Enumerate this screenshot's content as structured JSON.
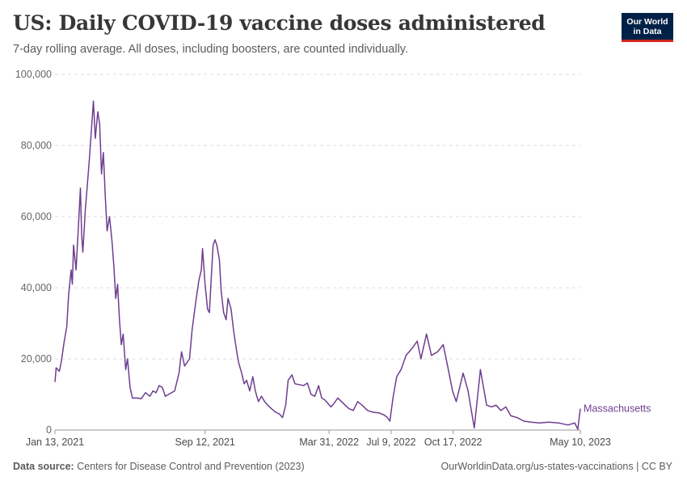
{
  "header": {
    "title": "US: Daily COVID-19 vaccine doses administered",
    "subtitle": "7-day rolling average. All doses, including boosters, are counted individually.",
    "logo_line1": "Our World",
    "logo_line2": "in Data"
  },
  "footer": {
    "source_label": "Data source:",
    "source_text": "Centers for Disease Control and Prevention (2023)",
    "url_license": "OurWorldinData.org/us-states-vaccinations | CC BY"
  },
  "colors": {
    "series": "#6d3e91",
    "grid": "#dddddd",
    "axis": "#999999",
    "logo_bg": "#002147",
    "logo_accent": "#ce261e"
  },
  "chart_data": {
    "type": "line",
    "title": "US: Daily COVID-19 vaccine doses administered",
    "subtitle": "7-day rolling average. All doses, including boosters, are counted individually.",
    "x_range": [
      "2021-01-13",
      "2023-05-10"
    ],
    "ylim": [
      0,
      100000
    ],
    "y_ticks": [
      0,
      20000,
      40000,
      60000,
      80000,
      100000
    ],
    "y_tick_labels": [
      "0",
      "20,000",
      "40,000",
      "60,000",
      "80,000",
      "100,000"
    ],
    "x_ticks": [
      {
        "date": "2021-01-13",
        "label": "Jan 13, 2021"
      },
      {
        "date": "2021-09-12",
        "label": "Sep 12, 2021"
      },
      {
        "date": "2022-03-31",
        "label": "Mar 31, 2022"
      },
      {
        "date": "2022-07-09",
        "label": "Jul 9, 2022"
      },
      {
        "date": "2022-10-17",
        "label": "Oct 17, 2022"
      },
      {
        "date": "2023-05-10",
        "label": "May 10, 2023"
      }
    ],
    "grid": "horizontal dashed",
    "legend": "inline label at line end (right)",
    "series": [
      {
        "name": "Massachusetts",
        "points": [
          [
            "2021-01-13",
            13500
          ],
          [
            "2021-01-15",
            17500
          ],
          [
            "2021-01-20",
            16500
          ],
          [
            "2021-01-23",
            19000
          ],
          [
            "2021-01-28",
            25000
          ],
          [
            "2021-02-01",
            29000
          ],
          [
            "2021-02-04",
            38000
          ],
          [
            "2021-02-08",
            45000
          ],
          [
            "2021-02-10",
            41000
          ],
          [
            "2021-02-12",
            52000
          ],
          [
            "2021-02-16",
            45000
          ],
          [
            "2021-02-20",
            58000
          ],
          [
            "2021-02-23",
            68000
          ],
          [
            "2021-02-25",
            55000
          ],
          [
            "2021-02-27",
            50000
          ],
          [
            "2021-03-03",
            62000
          ],
          [
            "2021-03-09",
            75000
          ],
          [
            "2021-03-13",
            85000
          ],
          [
            "2021-03-16",
            92500
          ],
          [
            "2021-03-19",
            82000
          ],
          [
            "2021-03-23",
            89500
          ],
          [
            "2021-03-26",
            86000
          ],
          [
            "2021-03-29",
            72000
          ],
          [
            "2021-04-01",
            78000
          ],
          [
            "2021-04-04",
            66000
          ],
          [
            "2021-04-07",
            56000
          ],
          [
            "2021-04-11",
            60000
          ],
          [
            "2021-04-15",
            53000
          ],
          [
            "2021-04-18",
            46000
          ],
          [
            "2021-04-21",
            37000
          ],
          [
            "2021-04-24",
            41000
          ],
          [
            "2021-04-27",
            31000
          ],
          [
            "2021-04-30",
            24000
          ],
          [
            "2021-05-03",
            27000
          ],
          [
            "2021-05-07",
            17000
          ],
          [
            "2021-05-10",
            20000
          ],
          [
            "2021-05-14",
            12000
          ],
          [
            "2021-05-18",
            9000
          ],
          [
            "2021-05-25",
            9000
          ],
          [
            "2021-06-01",
            8800
          ],
          [
            "2021-06-08",
            10500
          ],
          [
            "2021-06-15",
            9500
          ],
          [
            "2021-06-20",
            11000
          ],
          [
            "2021-06-25",
            10500
          ],
          [
            "2021-06-30",
            12500
          ],
          [
            "2021-07-05",
            12000
          ],
          [
            "2021-07-10",
            9500
          ],
          [
            "2021-07-15",
            10000
          ],
          [
            "2021-07-25",
            11000
          ],
          [
            "2021-08-01",
            16000
          ],
          [
            "2021-08-05",
            22000
          ],
          [
            "2021-08-10",
            18000
          ],
          [
            "2021-08-18",
            20000
          ],
          [
            "2021-08-22",
            28000
          ],
          [
            "2021-08-28",
            36000
          ],
          [
            "2021-09-02",
            42000
          ],
          [
            "2021-09-06",
            45000
          ],
          [
            "2021-09-08",
            51000
          ],
          [
            "2021-09-10",
            46000
          ],
          [
            "2021-09-12",
            41000
          ],
          [
            "2021-09-16",
            34000
          ],
          [
            "2021-09-19",
            33000
          ],
          [
            "2021-09-22",
            43000
          ],
          [
            "2021-09-25",
            52000
          ],
          [
            "2021-09-28",
            53500
          ],
          [
            "2021-10-01",
            52000
          ],
          [
            "2021-10-05",
            48000
          ],
          [
            "2021-10-08",
            39000
          ],
          [
            "2021-10-12",
            33000
          ],
          [
            "2021-10-16",
            31000
          ],
          [
            "2021-10-19",
            37000
          ],
          [
            "2021-10-24",
            34000
          ],
          [
            "2021-10-28",
            28000
          ],
          [
            "2021-11-02",
            22000
          ],
          [
            "2021-11-05",
            19000
          ],
          [
            "2021-11-10",
            16000
          ],
          [
            "2021-11-14",
            13000
          ],
          [
            "2021-11-18",
            14000
          ],
          [
            "2021-11-23",
            11000
          ],
          [
            "2021-11-28",
            15000
          ],
          [
            "2021-12-02",
            11000
          ],
          [
            "2021-12-07",
            8000
          ],
          [
            "2021-12-12",
            9500
          ],
          [
            "2021-12-17",
            8000
          ],
          [
            "2021-12-22",
            7000
          ],
          [
            "2021-12-28",
            6000
          ],
          [
            "2022-01-04",
            5000
          ],
          [
            "2022-01-10",
            4500
          ],
          [
            "2022-01-15",
            3500
          ],
          [
            "2022-01-20",
            7000
          ],
          [
            "2022-01-24",
            14000
          ],
          [
            "2022-01-30",
            15500
          ],
          [
            "2022-02-04",
            13000
          ],
          [
            "2022-02-10",
            12800
          ],
          [
            "2022-02-18",
            12500
          ],
          [
            "2022-02-24",
            13200
          ],
          [
            "2022-03-02",
            10000
          ],
          [
            "2022-03-08",
            9500
          ],
          [
            "2022-03-14",
            12500
          ],
          [
            "2022-03-19",
            9000
          ],
          [
            "2022-03-24",
            8500
          ],
          [
            "2022-03-29",
            7500
          ],
          [
            "2022-04-03",
            6500
          ],
          [
            "2022-04-08",
            7500
          ],
          [
            "2022-04-14",
            9000
          ],
          [
            "2022-04-20",
            8000
          ],
          [
            "2022-04-26",
            7000
          ],
          [
            "2022-05-02",
            6000
          ],
          [
            "2022-05-09",
            5500
          ],
          [
            "2022-05-16",
            8000
          ],
          [
            "2022-05-23",
            7000
          ],
          [
            "2022-06-01",
            5500
          ],
          [
            "2022-06-10",
            5000
          ],
          [
            "2022-06-20",
            4800
          ],
          [
            "2022-06-28",
            4200
          ],
          [
            "2022-07-03",
            3500
          ],
          [
            "2022-07-07",
            2500
          ],
          [
            "2022-07-12",
            9000
          ],
          [
            "2022-07-18",
            15000
          ],
          [
            "2022-07-25",
            17000
          ],
          [
            "2022-08-02",
            21000
          ],
          [
            "2022-08-12",
            23000
          ],
          [
            "2022-08-20",
            25000
          ],
          [
            "2022-08-26",
            20000
          ],
          [
            "2022-09-04",
            27000
          ],
          [
            "2022-09-12",
            21000
          ],
          [
            "2022-09-22",
            22000
          ],
          [
            "2022-10-01",
            24000
          ],
          [
            "2022-10-08",
            18000
          ],
          [
            "2022-10-16",
            11000
          ],
          [
            "2022-10-22",
            8000
          ],
          [
            "2022-11-02",
            16000
          ],
          [
            "2022-11-10",
            11000
          ],
          [
            "2022-11-20",
            600
          ],
          [
            "2022-11-30",
            17000
          ],
          [
            "2022-12-10",
            7000
          ],
          [
            "2022-12-18",
            6500
          ],
          [
            "2022-12-25",
            7000
          ],
          [
            "2023-01-02",
            5500
          ],
          [
            "2023-01-10",
            6500
          ],
          [
            "2023-01-18",
            4000
          ],
          [
            "2023-01-28",
            3500
          ],
          [
            "2023-02-08",
            2500
          ],
          [
            "2023-02-20",
            2200
          ],
          [
            "2023-03-05",
            2000
          ],
          [
            "2023-03-20",
            2200
          ],
          [
            "2023-04-05",
            2000
          ],
          [
            "2023-04-20",
            1400
          ],
          [
            "2023-05-01",
            2000
          ],
          [
            "2023-05-06",
            200
          ],
          [
            "2023-05-10",
            6000
          ]
        ]
      }
    ]
  }
}
